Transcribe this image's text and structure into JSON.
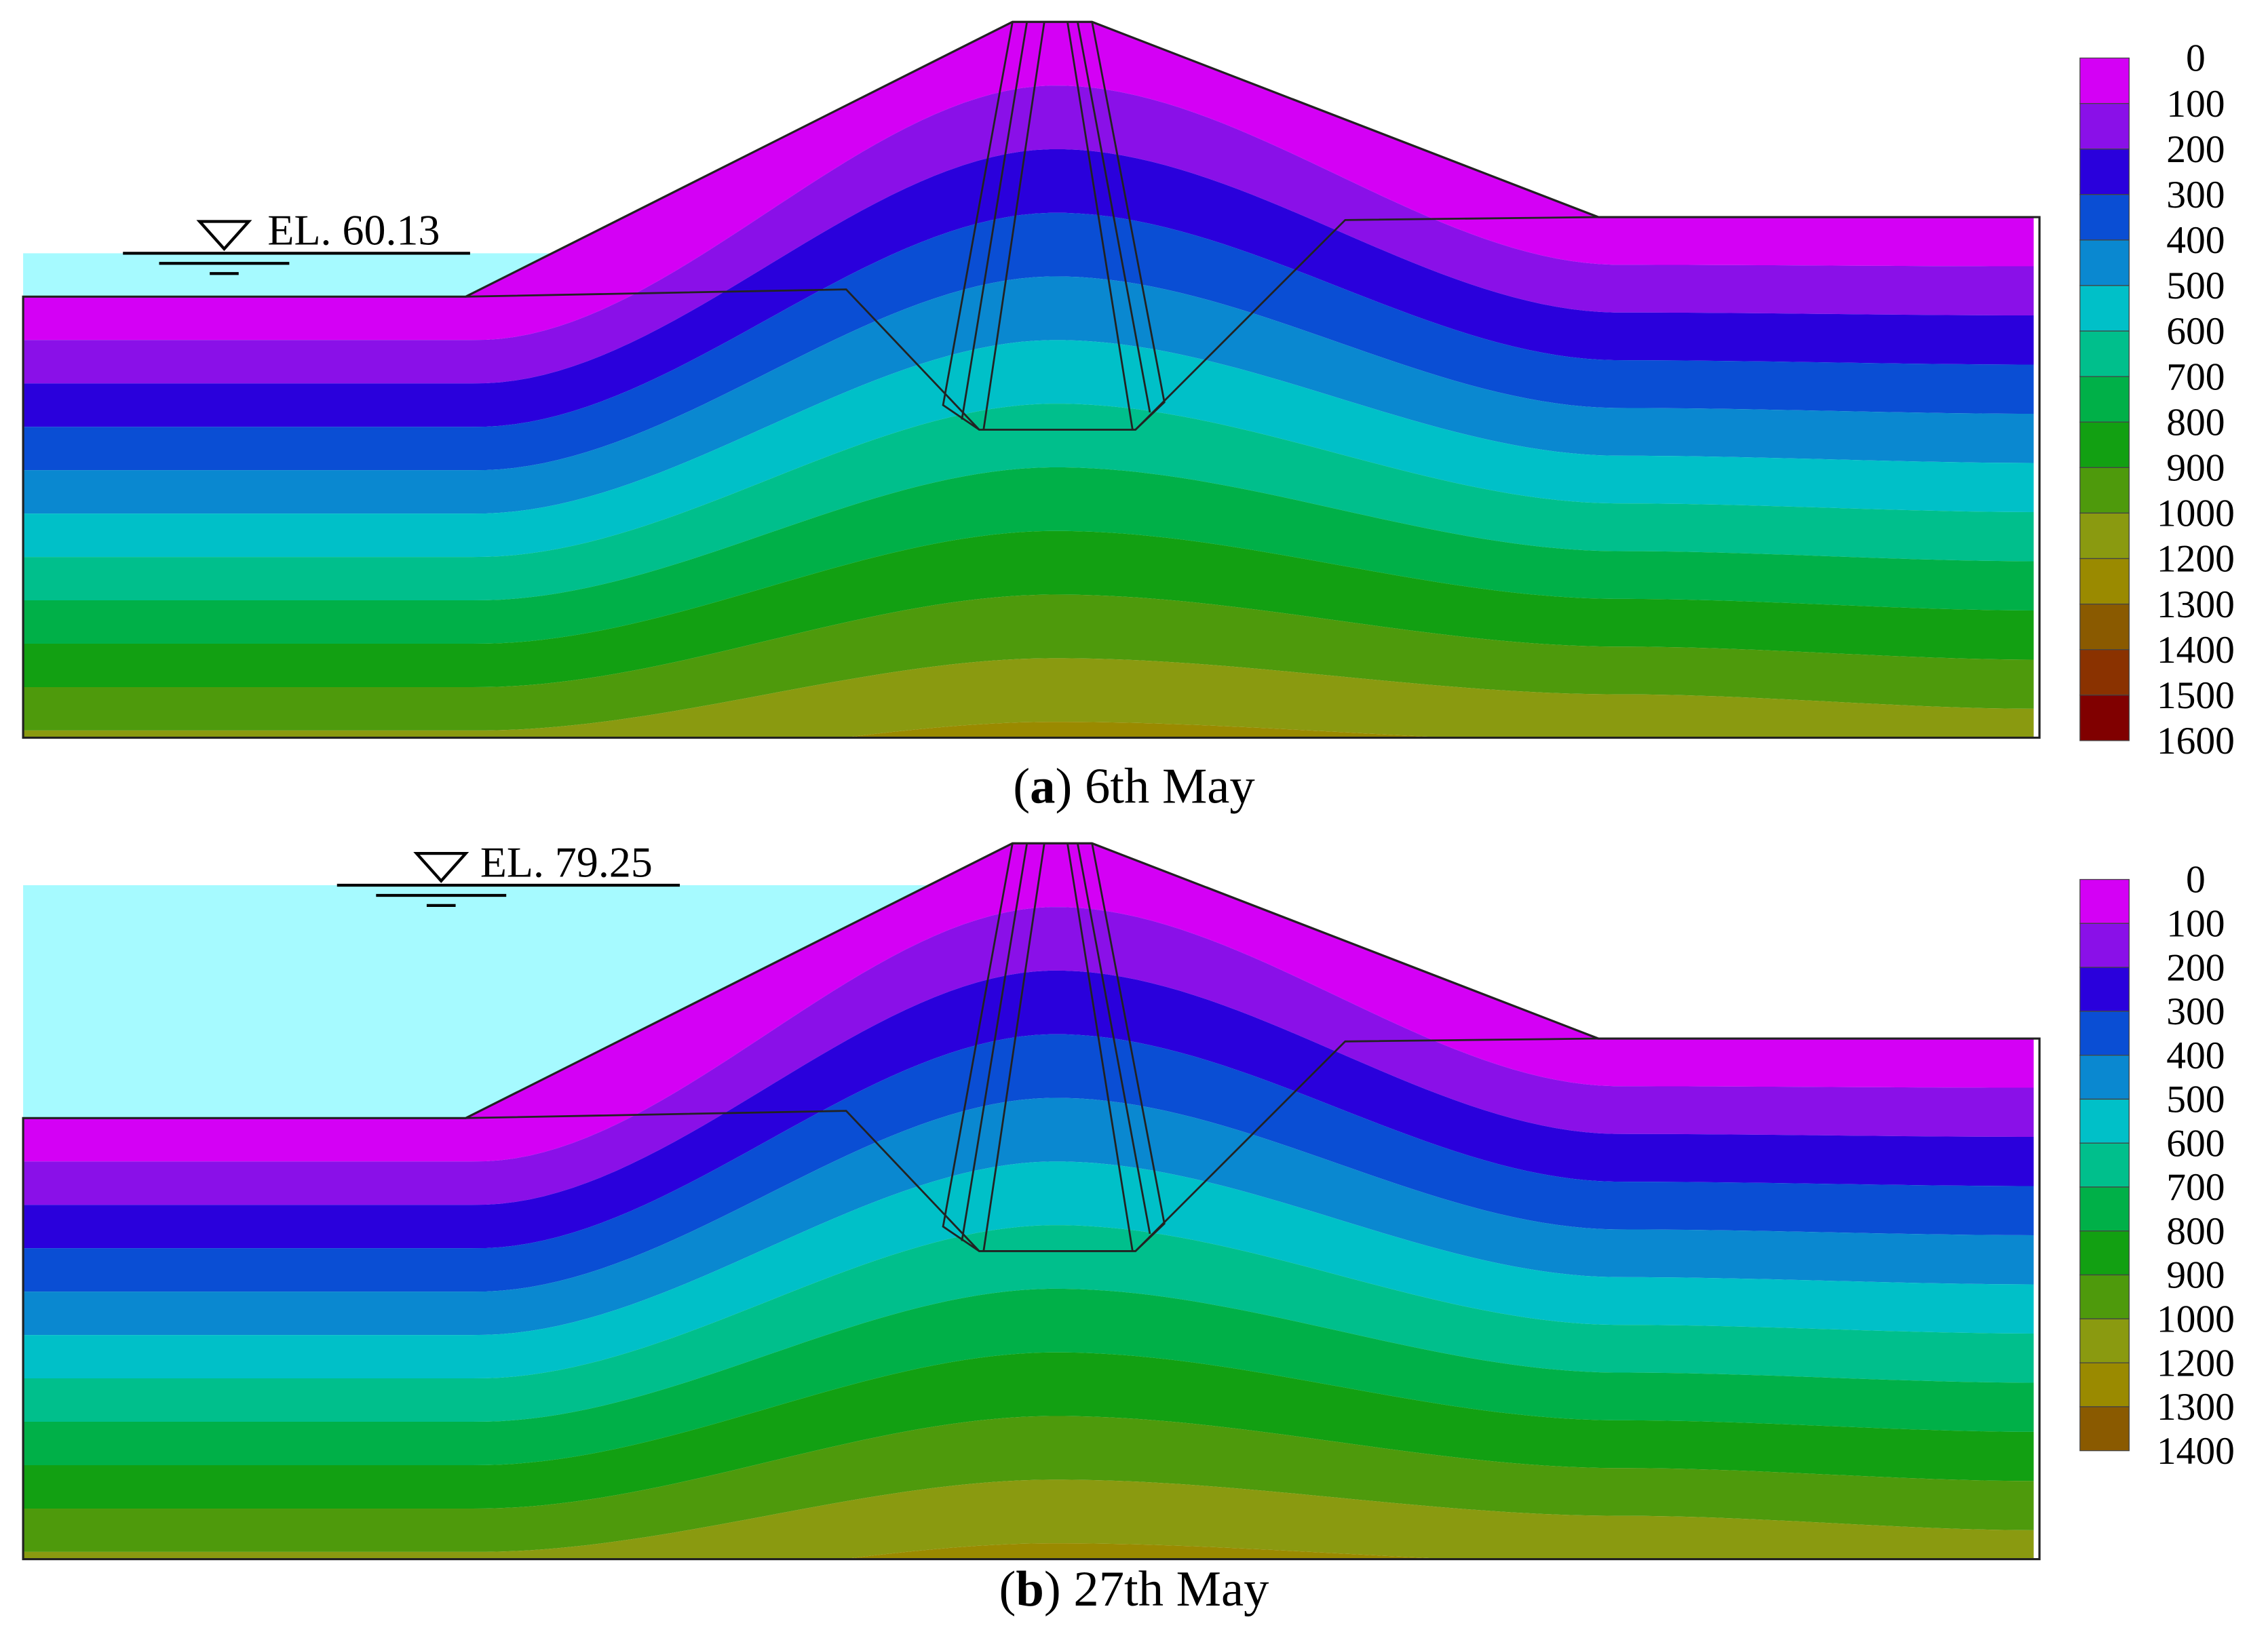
{
  "panels": [
    {
      "caption": [
        "(",
        "a",
        ") 6th May"
      ],
      "water_level": "EL. 60.13",
      "legend": {
        "labels": [
          0,
          100,
          200,
          300,
          400,
          500,
          600,
          700,
          800,
          900,
          1000,
          1200,
          1300,
          1400,
          1500,
          1600
        ],
        "colors": [
          "#d400f5",
          "#8a10e8",
          "#2a00dc",
          "#0a4ed4",
          "#0a88d0",
          "#00c0c8",
          "#00bf8c",
          "#00b048",
          "#12a012",
          "#4e9a0c",
          "#8a9a10",
          "#9a8a00",
          "#8a5a00",
          "#8a3200",
          "#800000"
        ]
      }
    },
    {
      "caption": [
        "(",
        "b",
        ") 27th May"
      ],
      "water_level": "EL. 79.25",
      "legend": {
        "labels": [
          0,
          100,
          200,
          300,
          400,
          500,
          600,
          700,
          800,
          900,
          1000,
          1200,
          1300,
          1400
        ],
        "colors": [
          "#d400f5",
          "#8a10e8",
          "#2a00dc",
          "#0a4ed4",
          "#0a88d0",
          "#00c0c8",
          "#00bf8c",
          "#00b048",
          "#12a012",
          "#4e9a0c",
          "#8a9a10",
          "#9a8a00",
          "#8a5a00"
        ]
      }
    }
  ]
}
